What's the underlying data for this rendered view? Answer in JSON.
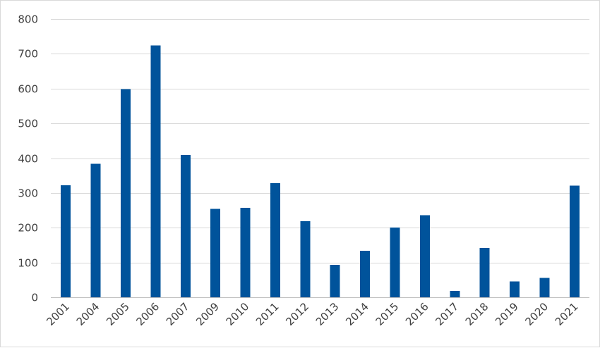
{
  "chart_data": {
    "type": "bar",
    "title": "",
    "xlabel": "",
    "ylabel": "",
    "categories": [
      "2001",
      "2004",
      "2005",
      "2006",
      "2007",
      "2009",
      "2010",
      "2011",
      "2012",
      "2013",
      "2014",
      "2015",
      "2016",
      "2017",
      "2018",
      "2019",
      "2020",
      "2021"
    ],
    "values": [
      322,
      384,
      598,
      724,
      409,
      254,
      257,
      328,
      219,
      93,
      134,
      201,
      236,
      18,
      142,
      46,
      56,
      321
    ],
    "ylim": [
      0,
      800
    ],
    "yticks": [
      0,
      100,
      200,
      300,
      400,
      500,
      600,
      700,
      800
    ],
    "grid": true,
    "legend": "none",
    "bar_color": "#00539b"
  }
}
